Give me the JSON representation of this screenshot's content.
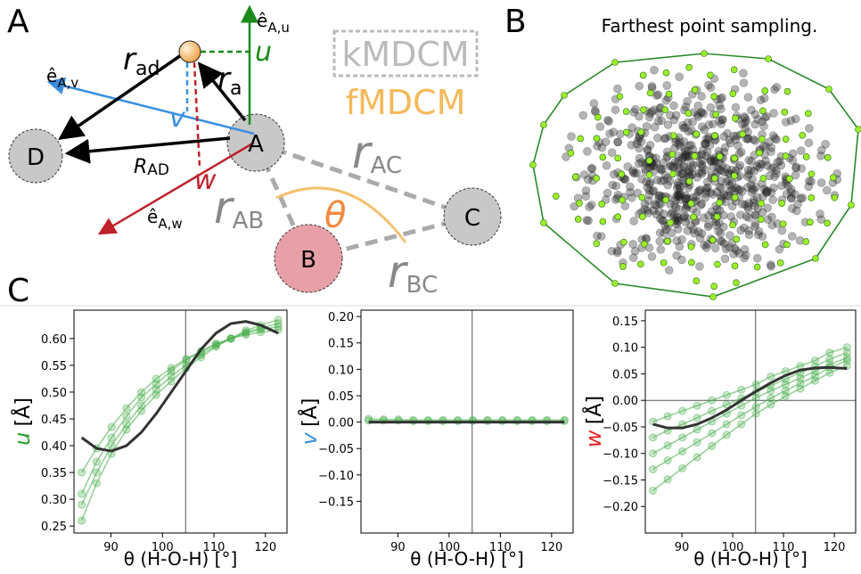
{
  "panel_a": {
    "label": "A",
    "e_u": {
      "base": "ê",
      "sub": "A,u"
    },
    "u": "u",
    "kmdcm": "kMDCM",
    "fmdcm": "fMDCM",
    "e_v": {
      "base": "ê",
      "sub": "A,v"
    },
    "r_ad": {
      "base": "r",
      "sub": "ad"
    },
    "r_a": {
      "base": "r",
      "sub": "a"
    },
    "v": "v",
    "atom_a": "A",
    "atom_d": "D",
    "atom_b": "B",
    "atom_c": "C",
    "R_ad": {
      "base": "R",
      "sub": "AD"
    },
    "w": "w",
    "e_w": {
      "base": "ê",
      "sub": "A,w"
    },
    "r_ac": {
      "base": "r",
      "sub": "AC"
    },
    "r_ab": {
      "base": "r",
      "sub": "AB"
    },
    "r_bc": {
      "base": "r",
      "sub": "BC"
    },
    "theta": "θ"
  },
  "panel_b": {
    "label": "B",
    "title": "Farthest point sampling."
  },
  "panel_c": {
    "label": "C"
  },
  "chart_data": [
    {
      "type": "line",
      "xlabel": "θ (H-O-H) [°]",
      "ylabel_var": "u",
      "ylabel_var_color": "#2ca02c",
      "ylabel_unit": "[Å]",
      "x": [
        84.3,
        87.2,
        90.1,
        93.0,
        95.9,
        98.8,
        101.7,
        104.6,
        107.5,
        110.4,
        113.3,
        116.2,
        119.1,
        122.5
      ],
      "xlim": [
        82.8,
        124.2
      ],
      "xticks": [
        90,
        100,
        110,
        120
      ],
      "vline": 104.5,
      "ylim": [
        0.237,
        0.653
      ],
      "yticks": [
        0.25,
        {
          "value": 0.3,
          "label": "0.30"
        },
        0.35,
        {
          "value": 0.4,
          "label": "0.40"
        },
        0.45,
        {
          "value": 0.5,
          "label": "0.50"
        },
        0.55,
        {
          "value": 0.6,
          "label": "0.60"
        }
      ],
      "series": [
        {
          "color": "#4caf50",
          "values": [
            0.26,
            0.33,
            0.385,
            0.43,
            0.465,
            0.495,
            0.52,
            0.545,
            0.565,
            0.585,
            0.6,
            0.615,
            0.625,
            0.635
          ]
        },
        {
          "color": "#4caf50",
          "values": [
            0.29,
            0.35,
            0.4,
            0.44,
            0.475,
            0.505,
            0.53,
            0.55,
            0.57,
            0.587,
            0.6,
            0.612,
            0.62,
            0.628
          ]
        },
        {
          "color": "#4caf50",
          "values": [
            0.31,
            0.37,
            0.415,
            0.455,
            0.49,
            0.515,
            0.54,
            0.56,
            0.575,
            0.59,
            0.6,
            0.61,
            0.617,
            0.622
          ]
        },
        {
          "color": "#4caf50",
          "values": [
            0.35,
            0.395,
            0.435,
            0.47,
            0.5,
            0.525,
            0.545,
            0.562,
            0.577,
            0.59,
            0.6,
            0.607,
            0.612,
            0.616
          ]
        },
        {
          "color": "#333333",
          "values": [
            0.415,
            0.395,
            0.39,
            0.4,
            0.425,
            0.46,
            0.5,
            0.54,
            0.58,
            0.61,
            0.628,
            0.632,
            0.625,
            0.61
          ]
        }
      ]
    },
    {
      "type": "line",
      "xlabel": "θ (H-O-H) [°]",
      "ylabel_var": "v",
      "ylabel_var_color": "#3b8fe0",
      "ylabel_unit": "[Å]",
      "x": [
        84.3,
        87.2,
        90.1,
        93.0,
        95.9,
        98.8,
        101.7,
        104.6,
        107.5,
        110.4,
        113.3,
        116.2,
        119.1,
        122.5
      ],
      "xlim": [
        82.8,
        124.2
      ],
      "xticks": [
        90,
        100,
        110,
        120
      ],
      "vline": 104.5,
      "ylim": [
        -0.21,
        0.212
      ],
      "yticks": [
        {
          "value": -0.15,
          "label": "−0.15"
        },
        {
          "value": -0.1,
          "label": "−0.10"
        },
        {
          "value": -0.05,
          "label": "−0.05"
        },
        {
          "value": 0,
          "label": "0.00"
        },
        0.05,
        {
          "value": 0.1,
          "label": "0.10"
        },
        0.15,
        {
          "value": 0.2,
          "label": "0.20"
        }
      ],
      "series": [
        {
          "color": "#4caf50",
          "values": [
            0.006,
            0.005,
            0.005,
            0.004,
            0.004,
            0.004,
            0.004,
            0.004,
            0.004,
            0.004,
            0.004,
            0.004,
            0.004,
            0.004
          ]
        },
        {
          "color": "#4caf50",
          "values": [
            0.003,
            0.003,
            0.003,
            0.002,
            0.002,
            0.002,
            0.002,
            0.002,
            0.002,
            0.002,
            0.002,
            0.002,
            0.002,
            0.002
          ]
        },
        {
          "color": "#333333",
          "values": [
            0,
            0,
            0,
            0,
            0,
            0,
            0,
            0,
            0,
            0,
            0,
            0,
            0,
            0
          ]
        }
      ]
    },
    {
      "type": "line",
      "xlabel": "θ (H-O-H) [°]",
      "ylabel_var": "w",
      "ylabel_var_color": "#e02020",
      "ylabel_unit": "[Å]",
      "x": [
        84.3,
        87.2,
        90.1,
        93.0,
        95.9,
        98.8,
        101.7,
        104.6,
        107.5,
        110.4,
        113.3,
        116.2,
        119.1,
        122.5
      ],
      "xlim": [
        82.8,
        124.2
      ],
      "xticks": [
        90,
        100,
        110,
        120
      ],
      "vline": 104.5,
      "hline": 0,
      "ylim": [
        -0.25,
        0.17
      ],
      "yticks": [
        {
          "value": -0.2,
          "label": "−0.20"
        },
        {
          "value": -0.15,
          "label": "−0.15"
        },
        {
          "value": -0.1,
          "label": "−0.10"
        },
        {
          "value": -0.05,
          "label": "−0.05"
        },
        {
          "value": 0,
          "label": "0.00"
        },
        0.05,
        {
          "value": 0.1,
          "label": "0.10"
        },
        0.15
      ],
      "series": [
        {
          "color": "#4caf50",
          "values": [
            -0.04,
            -0.03,
            -0.02,
            -0.01,
            0.0,
            0.01,
            0.02,
            0.03,
            0.045,
            0.055,
            0.065,
            0.075,
            0.09,
            0.1
          ]
        },
        {
          "color": "#4caf50",
          "values": [
            -0.07,
            -0.057,
            -0.045,
            -0.033,
            -0.02,
            -0.008,
            0.004,
            0.016,
            0.028,
            0.04,
            0.052,
            0.064,
            0.078,
            0.09
          ]
        },
        {
          "color": "#4caf50",
          "values": [
            -0.1,
            -0.085,
            -0.07,
            -0.055,
            -0.04,
            -0.025,
            -0.01,
            0.005,
            0.018,
            0.03,
            0.042,
            0.055,
            0.068,
            0.08
          ]
        },
        {
          "color": "#4caf50",
          "values": [
            -0.13,
            -0.113,
            -0.096,
            -0.079,
            -0.062,
            -0.045,
            -0.028,
            -0.012,
            0.004,
            0.018,
            0.032,
            0.046,
            0.062,
            0.075
          ]
        },
        {
          "color": "#4caf50",
          "values": [
            -0.17,
            -0.149,
            -0.128,
            -0.107,
            -0.086,
            -0.065,
            -0.045,
            -0.025,
            -0.008,
            0.008,
            0.022,
            0.037,
            0.052,
            0.065
          ]
        },
        {
          "color": "#333333",
          "values": [
            -0.045,
            -0.052,
            -0.052,
            -0.045,
            -0.033,
            -0.018,
            0.0,
            0.017,
            0.033,
            0.047,
            0.057,
            0.061,
            0.062,
            0.06
          ]
        }
      ]
    }
  ]
}
